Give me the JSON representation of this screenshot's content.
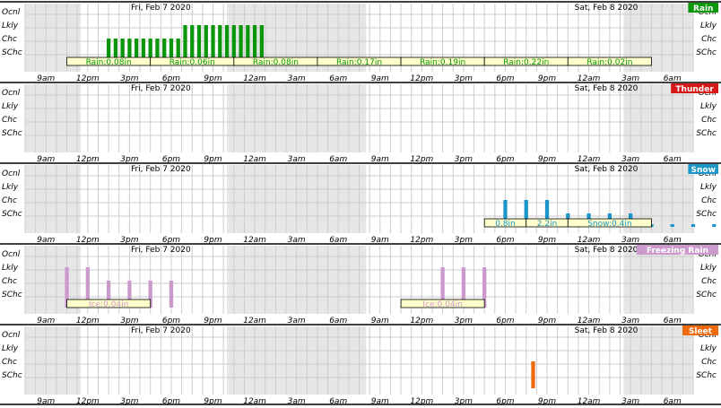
{
  "chart_data": {
    "type": "bar",
    "dates": [
      "Fri, Feb 7 2020",
      "Sat, Feb 8 2020"
    ],
    "hour_labels": [
      "9am",
      "12pm",
      "3pm",
      "6pm",
      "9pm",
      "12am",
      "3am",
      "6am",
      "9am",
      "12pm",
      "3pm",
      "6pm",
      "9pm",
      "12am",
      "3am",
      "6am"
    ],
    "levels": [
      "Ocnl",
      "Lkly",
      "Chc",
      "SChc"
    ],
    "panels": [
      {
        "name": "Rain",
        "color": "#0a960a",
        "badge_color": "#0a960a",
        "bars": [
          {
            "hour": 12,
            "level": 2.0
          },
          {
            "hour": 13,
            "level": 2.0
          },
          {
            "hour": 14,
            "level": 2.0
          },
          {
            "hour": 15,
            "level": 2.0
          },
          {
            "hour": 16,
            "level": 2.0
          },
          {
            "hour": 17,
            "level": 2.0
          },
          {
            "hour": 18,
            "level": 2.0
          },
          {
            "hour": 19,
            "level": 2.0
          },
          {
            "hour": 20,
            "level": 2.0
          },
          {
            "hour": 21,
            "level": 2.0
          },
          {
            "hour": 22,
            "level": 2.0
          },
          {
            "hour": 23,
            "level": 3.0
          },
          {
            "hour": 24,
            "level": 3.0
          },
          {
            "hour": 25,
            "level": 3.0
          },
          {
            "hour": 26,
            "level": 3.0
          },
          {
            "hour": 27,
            "level": 3.0
          },
          {
            "hour": 28,
            "level": 3.0
          },
          {
            "hour": 29,
            "level": 3.0
          },
          {
            "hour": 30,
            "level": 3.0
          },
          {
            "hour": 31,
            "level": 3.0
          },
          {
            "hour": 32,
            "level": 3.0
          },
          {
            "hour": 33,
            "level": 3.0
          },
          {
            "hour": 34,
            "level": 3.0
          },
          {
            "hour": 35,
            "level": 0.1
          },
          {
            "hour": 36,
            "level": 0.1
          },
          {
            "hour": 37,
            "level": 0.1
          },
          {
            "hour": 38,
            "level": 0.1
          },
          {
            "hour": 39,
            "level": 0.1
          },
          {
            "hour": 40,
            "level": 0.1
          },
          {
            "hour": 41,
            "level": 0.1
          },
          {
            "hour": 42,
            "level": 0.1
          },
          {
            "hour": 43,
            "level": 0.1
          },
          {
            "hour": 44,
            "level": 0.1
          },
          {
            "hour": 45,
            "level": 0.1
          },
          {
            "hour": 46,
            "level": 0.1
          },
          {
            "hour": 47,
            "level": 0.1
          },
          {
            "hour": 48,
            "level": 0.1
          },
          {
            "hour": 49,
            "level": 0.1
          },
          {
            "hour": 50,
            "level": 0.1
          },
          {
            "hour": 51,
            "level": 0.1
          },
          {
            "hour": 52,
            "level": 0.1
          },
          {
            "hour": 53,
            "level": 0.1
          }
        ],
        "amounts": [
          {
            "text": "Rain:0.08in",
            "from": 6,
            "to": 18
          },
          {
            "text": "Rain:0.06in",
            "from": 18,
            "to": 30
          },
          {
            "text": "Rain:0.08in",
            "from": 30,
            "to": 42
          },
          {
            "text": "Rain:0.17in",
            "from": 42,
            "to": 54
          },
          {
            "text": "Rain:0.19in",
            "from": 54,
            "to": 66
          },
          {
            "text": "Rain:0.22in",
            "from": 66,
            "to": 78
          },
          {
            "text": "Rain:0.02in",
            "from": 78,
            "to": 90
          }
        ]
      },
      {
        "name": "Thunder",
        "color": "#d61818",
        "badge_color": "#d61818",
        "bars": [],
        "amounts": []
      },
      {
        "name": "Snow",
        "color": "#1a96c8",
        "badge_color": "#1a96c8",
        "bars": [
          {
            "hour": 67,
            "level": 0.1
          },
          {
            "hour": 68,
            "level": 0.1
          },
          {
            "hour": 69,
            "level": 2.0
          },
          {
            "hour": 72,
            "level": 2.0
          },
          {
            "hour": 75,
            "level": 2.0
          },
          {
            "hour": 78,
            "level": 1.0
          },
          {
            "hour": 81,
            "level": 1.0
          },
          {
            "hour": 84,
            "level": 1.0
          },
          {
            "hour": 87,
            "level": 1.0
          },
          {
            "hour": 90,
            "level": 0.2
          },
          {
            "hour": 93,
            "level": 0.2
          },
          {
            "hour": 96,
            "level": 0.2
          },
          {
            "hour": 99,
            "level": 0.2
          }
        ],
        "amounts": [
          {
            "text": "0.8in",
            "from": 66,
            "to": 72
          },
          {
            "text": "2.2in",
            "from": 72,
            "to": 78
          },
          {
            "text": "Snow:0.4in",
            "from": 78,
            "to": 90
          }
        ]
      },
      {
        "name": "Freezing Rain",
        "color": "#cc99cc",
        "badge_color": "#cc99cc",
        "bars": [
          {
            "hour": 6,
            "level": 3.0
          },
          {
            "hour": 9,
            "level": 3.0
          },
          {
            "hour": 12,
            "level": 2.0
          },
          {
            "hour": 15,
            "level": 2.0
          },
          {
            "hour": 18,
            "level": 2.0
          },
          {
            "hour": 21,
            "level": 2.0
          },
          {
            "hour": 60,
            "level": 3.0
          },
          {
            "hour": 63,
            "level": 3.0
          },
          {
            "hour": 66,
            "level": 3.0
          }
        ],
        "amounts": [
          {
            "text": "Ice:0.04in",
            "from": 6,
            "to": 18
          },
          {
            "text": "Ice:0.04in",
            "from": 54,
            "to": 66
          }
        ]
      },
      {
        "name": "Sleet",
        "color": "#ee6a0a",
        "badge_color": "#ee6a0a",
        "bars": [
          {
            "hour": 73,
            "level": 2.0
          }
        ],
        "amounts": []
      }
    ]
  }
}
